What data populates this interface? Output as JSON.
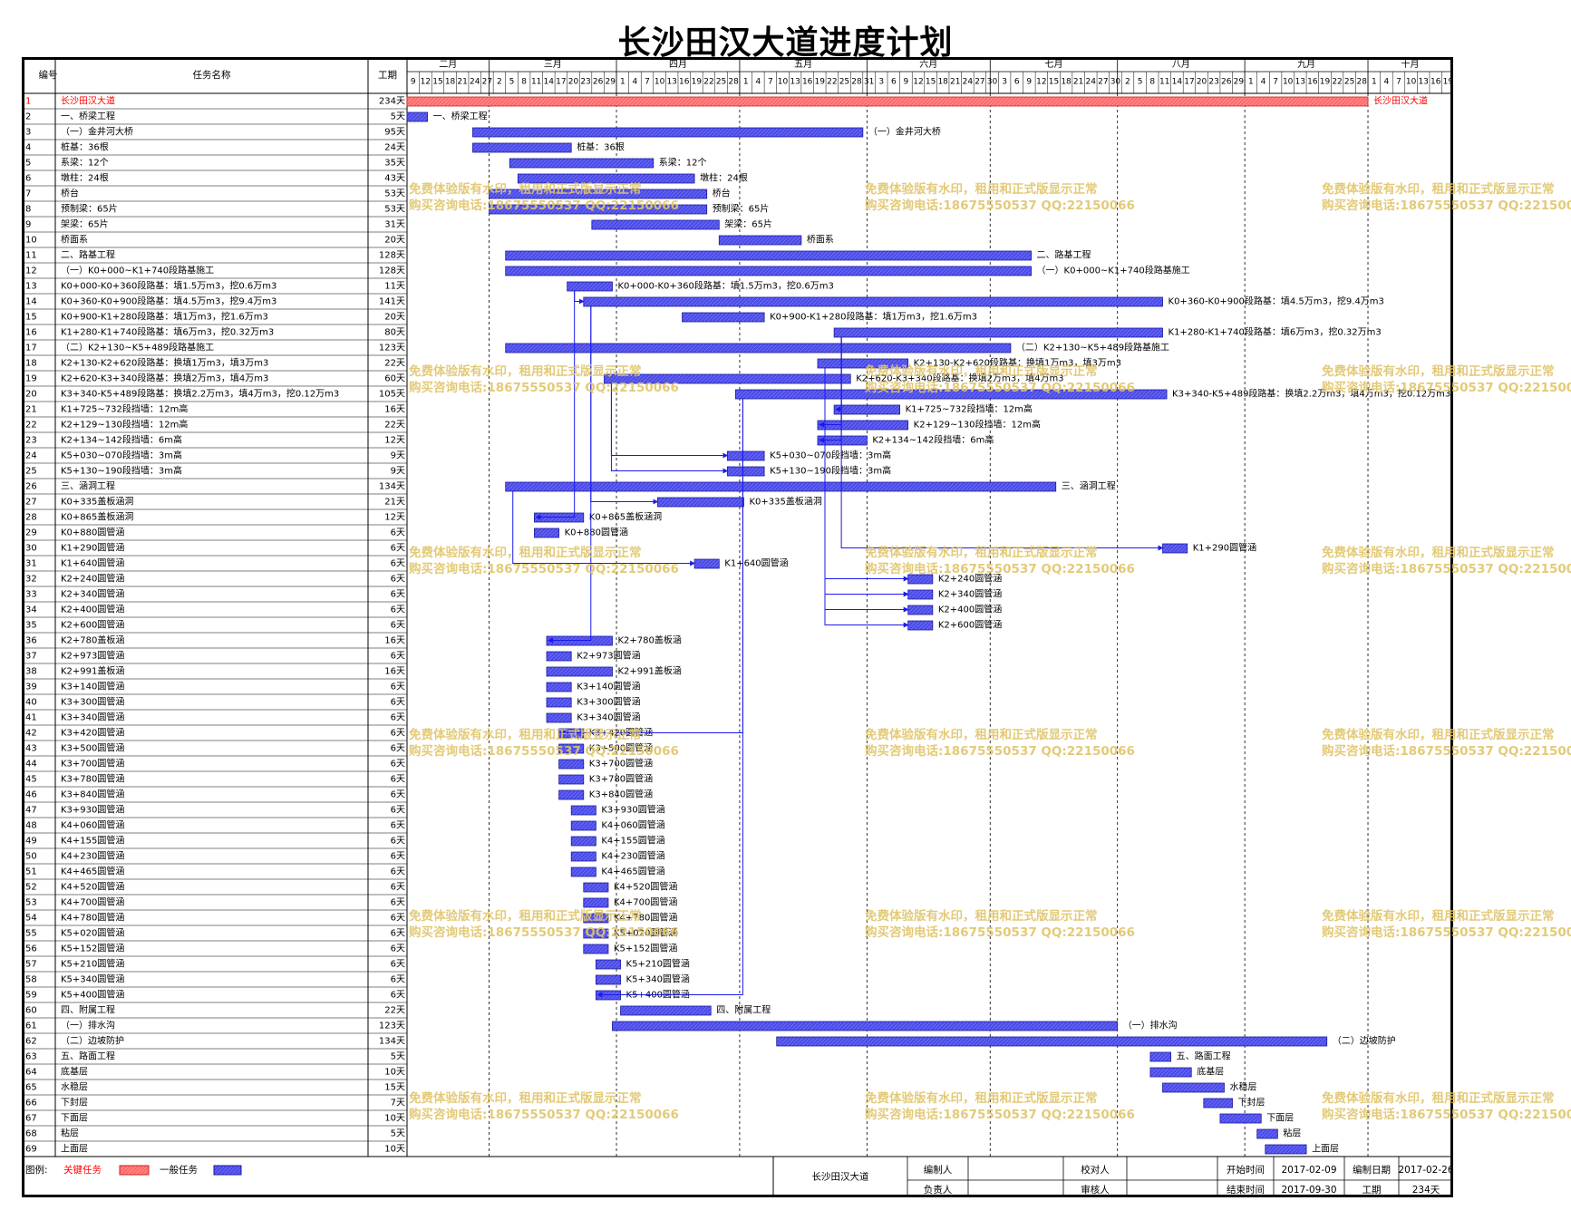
{
  "title": "长沙田汉大道进度计划",
  "headers": {
    "id": "编号",
    "name": "任务名称",
    "duration": "工期"
  },
  "months": [
    "二月",
    "三月",
    "四月",
    "五月",
    "六月",
    "七月",
    "八月",
    "九月",
    "十月"
  ],
  "day_labels": [
    "9",
    "12",
    "15",
    "18",
    "21",
    "24",
    "27",
    "2",
    "5",
    "8",
    "11",
    "14",
    "17",
    "20",
    "23",
    "26",
    "29",
    "1",
    "4",
    "7",
    "10",
    "13",
    "16",
    "19",
    "22",
    "25",
    "28",
    "1",
    "4",
    "7",
    "10",
    "13",
    "16",
    "19",
    "22",
    "25",
    "28",
    "31",
    "3",
    "6",
    "9",
    "12",
    "15",
    "18",
    "21",
    "24",
    "27",
    "30",
    "3",
    "6",
    "9",
    "12",
    "15",
    "18",
    "21",
    "24",
    "27",
    "30",
    "2",
    "5",
    "8",
    "11",
    "14",
    "17",
    "20",
    "23",
    "26",
    "29",
    "1",
    "4",
    "7",
    "10",
    "13",
    "16",
    "19",
    "22",
    "25",
    "28",
    "1",
    "4",
    "7",
    "10",
    "13",
    "16",
    "19",
    "22",
    "25"
  ],
  "schedule_start": "2017-02-09",
  "tasks": [
    {
      "id": "1",
      "name": "长沙田汉大道",
      "duration": "234天",
      "start": "2017-02-09",
      "end": "2017-09-30",
      "critical": true,
      "label": "长沙田汉大道"
    },
    {
      "id": "2",
      "name": "一、桥梁工程",
      "duration": "5天",
      "start": "2017-02-09",
      "end": "2017-02-13",
      "label": "一、桥梁工程"
    },
    {
      "id": "3",
      "name": "（一）金井河大桥",
      "duration": "95天",
      "start": "2017-02-25",
      "end": "2017-05-30",
      "label": "（一）金井河大桥"
    },
    {
      "id": "4",
      "name": "桩基：36根",
      "duration": "24天",
      "start": "2017-02-25",
      "end": "2017-03-20",
      "label": "桩基：36根"
    },
    {
      "id": "5",
      "name": "系梁：12个",
      "duration": "35天",
      "start": "2017-03-06",
      "end": "2017-04-09",
      "label": "系梁：12个"
    },
    {
      "id": "6",
      "name": "墩柱：24根",
      "duration": "43天",
      "start": "2017-03-08",
      "end": "2017-04-19",
      "label": "墩柱：24根"
    },
    {
      "id": "7",
      "name": "桥台",
      "duration": "53天",
      "start": "2017-03-01",
      "end": "2017-04-22",
      "label": "桥台"
    },
    {
      "id": "8",
      "name": "预制梁：65片",
      "duration": "53天",
      "start": "2017-03-01",
      "end": "2017-04-22",
      "label": "预制梁：65片"
    },
    {
      "id": "9",
      "name": "架梁：65片",
      "duration": "31天",
      "start": "2017-03-26",
      "end": "2017-04-25",
      "label": "架梁：65片"
    },
    {
      "id": "10",
      "name": "桥面系",
      "duration": "20天",
      "start": "2017-04-26",
      "end": "2017-05-15",
      "label": "桥面系"
    },
    {
      "id": "11",
      "name": "二、路基工程",
      "duration": "128天",
      "start": "2017-03-05",
      "end": "2017-07-10",
      "label": "二、路基工程"
    },
    {
      "id": "12",
      "name": "（一）K0+000~K1+740段路基施工",
      "duration": "128天",
      "start": "2017-03-05",
      "end": "2017-07-10",
      "label": "（一）K0+000~K1+740段路基施工"
    },
    {
      "id": "13",
      "name": "K0+000-K0+360段路基：填1.5万m3，挖0.6万m3",
      "duration": "11天",
      "start": "2017-03-20",
      "end": "2017-03-30",
      "label": "K0+000-K0+360段路基：填1.5万m3，挖0.6万m3"
    },
    {
      "id": "14",
      "name": "K0+360-K0+900段路基：填4.5万m3，挖9.4万m3",
      "duration": "141天",
      "start": "2017-03-24",
      "end": "2017-08-11",
      "label": "K0+360-K0+900段路基：填4.5万m3，挖9.4万m3"
    },
    {
      "id": "15",
      "name": "K0+900-K1+280段路基：填1万m3，挖1.6万m3",
      "duration": "20天",
      "start": "2017-04-17",
      "end": "2017-05-06",
      "label": "K0+900-K1+280段路基：填1万m3，挖1.6万m3"
    },
    {
      "id": "16",
      "name": "K1+280-K1+740段路基：填6万m3，挖0.32万m3",
      "duration": "80天",
      "start": "2017-05-24",
      "end": "2017-08-11",
      "label": "K1+280-K1+740段路基：填6万m3，挖0.32万m3"
    },
    {
      "id": "17",
      "name": "（二）K2+130~K5+489段路基施工",
      "duration": "123天",
      "start": "2017-03-05",
      "end": "2017-07-05",
      "label": "（二）K2+130~K5+489段路基施工"
    },
    {
      "id": "18",
      "name": "K2+130-K2+620段路基：换填1万m3，填3万m3",
      "duration": "22天",
      "start": "2017-05-20",
      "end": "2017-06-10",
      "label": "K2+130-K2+620段路基：换填1万m3，填3万m3"
    },
    {
      "id": "19",
      "name": "K2+620-K3+340段路基：换填2万m3，填4万m3",
      "duration": "60天",
      "start": "2017-03-29",
      "end": "2017-05-27",
      "label": "K2+620-K3+340段路基：换填2万m3，填4万m3"
    },
    {
      "id": "20",
      "name": "K3+340-K5+489段路基：换填2.2万m3，填4万m3，挖0.12万m3",
      "duration": "105天",
      "start": "2017-04-30",
      "end": "2017-08-12",
      "label": "K3+340-K5+489段路基：换填2.2万m3，填4万m3，挖0.12万m3"
    },
    {
      "id": "21",
      "name": "K1+725~732段挡墙：12m高",
      "duration": "16天",
      "start": "2017-05-24",
      "end": "2017-06-08",
      "label": "K1+725~732段挡墙：12m高"
    },
    {
      "id": "22",
      "name": "K2+129~130段挡墙：12m高",
      "duration": "22天",
      "start": "2017-05-20",
      "end": "2017-06-10",
      "label": "K2+129~130段挡墙：12m高"
    },
    {
      "id": "23",
      "name": "K2+134~142段挡墙：6m高",
      "duration": "12天",
      "start": "2017-05-20",
      "end": "2017-05-31",
      "label": "K2+134~142段挡墙：6m高"
    },
    {
      "id": "24",
      "name": "K5+030~070段挡墙：3m高",
      "duration": "9天",
      "start": "2017-04-28",
      "end": "2017-05-06",
      "label": "K5+030~070段挡墙：3m高"
    },
    {
      "id": "25",
      "name": "K5+130~190段挡墙：3m高",
      "duration": "9天",
      "start": "2017-04-28",
      "end": "2017-05-06",
      "label": "K5+130~190段挡墙：3m高"
    },
    {
      "id": "26",
      "name": "三、涵洞工程",
      "duration": "134天",
      "start": "2017-03-05",
      "end": "2017-07-16",
      "label": "三、涵洞工程"
    },
    {
      "id": "27",
      "name": "K0+335盖板涵洞",
      "duration": "21天",
      "start": "2017-04-11",
      "end": "2017-05-01",
      "label": "K0+335盖板涵洞"
    },
    {
      "id": "28",
      "name": "K0+865盖板涵洞",
      "duration": "12天",
      "start": "2017-03-12",
      "end": "2017-03-23",
      "label": "K0+865盖板涵洞"
    },
    {
      "id": "29",
      "name": "K0+880圆管涵",
      "duration": "6天",
      "start": "2017-03-12",
      "end": "2017-03-17",
      "label": "K0+880圆管涵"
    },
    {
      "id": "30",
      "name": "K1+290圆管涵",
      "duration": "6天",
      "start": "2017-08-12",
      "end": "2017-08-17",
      "label": "K1+290圆管涵"
    },
    {
      "id": "31",
      "name": "K1+640圆管涵",
      "duration": "6天",
      "start": "2017-04-20",
      "end": "2017-04-25",
      "label": "K1+640圆管涵"
    },
    {
      "id": "32",
      "name": "K2+240圆管涵",
      "duration": "6天",
      "start": "2017-06-11",
      "end": "2017-06-16",
      "label": "K2+240圆管涵"
    },
    {
      "id": "33",
      "name": "K2+340圆管涵",
      "duration": "6天",
      "start": "2017-06-11",
      "end": "2017-06-16",
      "label": "K2+340圆管涵"
    },
    {
      "id": "34",
      "name": "K2+400圆管涵",
      "duration": "6天",
      "start": "2017-06-11",
      "end": "2017-06-16",
      "label": "K2+400圆管涵"
    },
    {
      "id": "35",
      "name": "K2+600圆管涵",
      "duration": "6天",
      "start": "2017-06-11",
      "end": "2017-06-16",
      "label": "K2+600圆管涵"
    },
    {
      "id": "36",
      "name": "K2+780盖板涵",
      "duration": "16天",
      "start": "2017-03-15",
      "end": "2017-03-30",
      "label": "K2+780盖板涵"
    },
    {
      "id": "37",
      "name": "K2+973圆管涵",
      "duration": "6天",
      "start": "2017-03-15",
      "end": "2017-03-20",
      "label": "K2+973圆管涵"
    },
    {
      "id": "38",
      "name": "K2+991盖板涵",
      "duration": "16天",
      "start": "2017-03-15",
      "end": "2017-03-30",
      "label": "K2+991盖板涵"
    },
    {
      "id": "39",
      "name": "K3+140圆管涵",
      "duration": "6天",
      "start": "2017-03-15",
      "end": "2017-03-20",
      "label": "K3+140圆管涵"
    },
    {
      "id": "40",
      "name": "K3+300圆管涵",
      "duration": "6天",
      "start": "2017-03-15",
      "end": "2017-03-20",
      "label": "K3+300圆管涵"
    },
    {
      "id": "41",
      "name": "K3+340圆管涵",
      "duration": "6天",
      "start": "2017-03-15",
      "end": "2017-03-20",
      "label": "K3+340圆管涵"
    },
    {
      "id": "42",
      "name": "K3+420圆管涵",
      "duration": "6天",
      "start": "2017-03-18",
      "end": "2017-03-23",
      "label": "K3+420圆管涵"
    },
    {
      "id": "43",
      "name": "K3+500圆管涵",
      "duration": "6天",
      "start": "2017-03-18",
      "end": "2017-03-23",
      "label": "K3+500圆管涵"
    },
    {
      "id": "44",
      "name": "K3+700圆管涵",
      "duration": "6天",
      "start": "2017-03-18",
      "end": "2017-03-23",
      "label": "K3+700圆管涵"
    },
    {
      "id": "45",
      "name": "K3+780圆管涵",
      "duration": "6天",
      "start": "2017-03-18",
      "end": "2017-03-23",
      "label": "K3+780圆管涵"
    },
    {
      "id": "46",
      "name": "K3+840圆管涵",
      "duration": "6天",
      "start": "2017-03-18",
      "end": "2017-03-23",
      "label": "K3+840圆管涵"
    },
    {
      "id": "47",
      "name": "K3+930圆管涵",
      "duration": "6天",
      "start": "2017-03-21",
      "end": "2017-03-26",
      "label": "K3+930圆管涵"
    },
    {
      "id": "48",
      "name": "K4+060圆管涵",
      "duration": "6天",
      "start": "2017-03-21",
      "end": "2017-03-26",
      "label": "K4+060圆管涵"
    },
    {
      "id": "49",
      "name": "K4+155圆管涵",
      "duration": "6天",
      "start": "2017-03-21",
      "end": "2017-03-26",
      "label": "K4+155圆管涵"
    },
    {
      "id": "50",
      "name": "K4+230圆管涵",
      "duration": "6天",
      "start": "2017-03-21",
      "end": "2017-03-26",
      "label": "K4+230圆管涵"
    },
    {
      "id": "51",
      "name": "K4+465圆管涵",
      "duration": "6天",
      "start": "2017-03-21",
      "end": "2017-03-26",
      "label": "K4+465圆管涵"
    },
    {
      "id": "52",
      "name": "K4+520圆管涵",
      "duration": "6天",
      "start": "2017-03-24",
      "end": "2017-03-29",
      "label": "K4+520圆管涵"
    },
    {
      "id": "53",
      "name": "K4+700圆管涵",
      "duration": "6天",
      "start": "2017-03-24",
      "end": "2017-03-29",
      "label": "K4+700圆管涵"
    },
    {
      "id": "54",
      "name": "K4+780圆管涵",
      "duration": "6天",
      "start": "2017-03-24",
      "end": "2017-03-29",
      "label": "K4+780圆管涵"
    },
    {
      "id": "55",
      "name": "K5+020圆管涵",
      "duration": "6天",
      "start": "2017-03-24",
      "end": "2017-03-29",
      "label": "K5+020圆管涵"
    },
    {
      "id": "56",
      "name": "K5+152圆管涵",
      "duration": "6天",
      "start": "2017-03-24",
      "end": "2017-03-29",
      "label": "K5+152圆管涵"
    },
    {
      "id": "57",
      "name": "K5+210圆管涵",
      "duration": "6天",
      "start": "2017-03-27",
      "end": "2017-04-01",
      "label": "K5+210圆管涵"
    },
    {
      "id": "58",
      "name": "K5+340圆管涵",
      "duration": "6天",
      "start": "2017-03-27",
      "end": "2017-04-01",
      "label": "K5+340圆管涵"
    },
    {
      "id": "59",
      "name": "K5+400圆管涵",
      "duration": "6天",
      "start": "2017-03-27",
      "end": "2017-04-01",
      "label": "K5+400圆管涵"
    },
    {
      "id": "60",
      "name": "四、附属工程",
      "duration": "22天",
      "start": "2017-04-02",
      "end": "2017-04-23",
      "label": "四、附属工程"
    },
    {
      "id": "61",
      "name": "（一）排水沟",
      "duration": "123天",
      "start": "2017-03-31",
      "end": "2017-07-31",
      "label": "（一）排水沟"
    },
    {
      "id": "62",
      "name": "（二）边坡防护",
      "duration": "134天",
      "start": "2017-05-10",
      "end": "2017-09-20",
      "label": "（二）边坡防护"
    },
    {
      "id": "63",
      "name": "五、路面工程",
      "duration": "5天",
      "start": "2017-08-09",
      "end": "2017-08-13",
      "label": "五、路面工程"
    },
    {
      "id": "64",
      "name": "底基层",
      "duration": "10天",
      "start": "2017-08-09",
      "end": "2017-08-18",
      "label": "底基层"
    },
    {
      "id": "65",
      "name": "水稳层",
      "duration": "15天",
      "start": "2017-08-12",
      "end": "2017-08-26",
      "label": "水稳层"
    },
    {
      "id": "66",
      "name": "下封层",
      "duration": "7天",
      "start": "2017-08-22",
      "end": "2017-08-28",
      "label": "下封层"
    },
    {
      "id": "67",
      "name": "下面层",
      "duration": "10天",
      "start": "2017-08-26",
      "end": "2017-09-04",
      "label": "下面层"
    },
    {
      "id": "68",
      "name": "粘层",
      "duration": "5天",
      "start": "2017-09-04",
      "end": "2017-09-08",
      "label": "粘层"
    },
    {
      "id": "69",
      "name": "上面层",
      "duration": "10天",
      "start": "2017-09-06",
      "end": "2017-09-15",
      "label": "上面层"
    }
  ],
  "dependencies": [
    {
      "from_task": "13",
      "to_task": "14"
    },
    {
      "from_task": "13",
      "to_task": "28"
    },
    {
      "from_task": "14",
      "to_task": "36"
    },
    {
      "from_task": "14",
      "to_task": "27"
    },
    {
      "from_task": "16",
      "to_task": "30"
    },
    {
      "from_task": "18",
      "to_task": "32"
    },
    {
      "from_task": "18",
      "to_task": "33"
    },
    {
      "from_task": "18",
      "to_task": "34"
    },
    {
      "from_task": "18",
      "to_task": "35"
    },
    {
      "from_task": "19",
      "to_task": "24"
    },
    {
      "from_task": "19",
      "to_task": "25"
    },
    {
      "from_task": "20",
      "to_task": "42"
    },
    {
      "from_task": "20",
      "to_task": "59"
    },
    {
      "from_task": "16",
      "to_task": "21"
    },
    {
      "from_task": "16",
      "to_task": "22"
    },
    {
      "from_task": "16",
      "to_task": "23"
    },
    {
      "from_task": "26",
      "to_task": "31"
    }
  ],
  "watermark": {
    "line1": "免费体验版有水印，租用和正式版显示正常",
    "line2": "购买咨询电话:18675550537 QQ:22150066"
  },
  "legend": {
    "label": "图例:",
    "critical": "关键任务",
    "normal": "一般任务",
    "critical_color": "#ff6666",
    "normal_color": "#4444ee"
  },
  "footer": {
    "project": "长沙田汉大道",
    "compiler_label": "编制人",
    "checker_label": "校对人",
    "start_label": "开始时间",
    "start_value": "2017-02-09",
    "date_label": "编制日期",
    "date_value": "2017-02-26",
    "responsible_label": "负责人",
    "reviewer_label": "审核人",
    "end_label": "结束时间",
    "end_value": "2017-09-30",
    "duration_label": "工期",
    "duration_value": "234天"
  },
  "colors": {
    "bar_fill": "#4b4bea",
    "bar_stroke": "#1a1aa0",
    "critical_fill": "#ff6b6b",
    "critical_text": "#ff0000",
    "grid": "#000000"
  }
}
